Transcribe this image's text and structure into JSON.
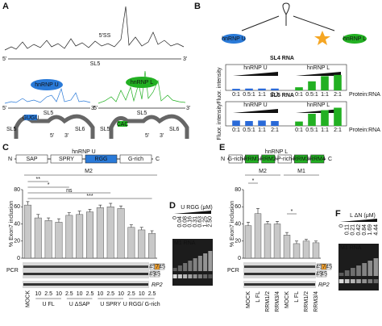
{
  "panels": {
    "a": {
      "label": "A",
      "ss": "5'SS",
      "stem": "SL5",
      "end5": "5'",
      "end3": "3'",
      "protein_u": "hnRNP U",
      "protein_l": "hnRNP L",
      "motif_u": "GUGU",
      "motif_l": "CAC",
      "stem2": "SL6"
    },
    "b": {
      "label": "B",
      "protein_u": "hnRNP U",
      "protein_l": "hnRNP L",
      "ylabel": "Fluor. intensity",
      "xlabel": "Protein:RNA",
      "categories": [
        "0:1",
        "0.5:1",
        "1:1",
        "2:1"
      ],
      "ylim": [
        0,
        1
      ],
      "charts": [
        {
          "type": "bar",
          "title": "SL4 RNA",
          "series": [
            {
              "name": "hnRNP U",
              "color": "#2a6ad8",
              "values": [
                0.06,
                0.07,
                0.07,
                0.07
              ]
            },
            {
              "name": "hnRNP L",
              "color": "#22b022",
              "values": [
                0.12,
                0.35,
                0.55,
                0.6
              ]
            }
          ]
        },
        {
          "type": "bar",
          "title": "SL5 RNA",
          "series": [
            {
              "name": "hnRNP U",
              "color": "#2a6ad8",
              "values": [
                0.22,
                0.2,
                0.22,
                0.2
              ]
            },
            {
              "name": "hnRNP L",
              "color": "#22b022",
              "values": [
                0.18,
                0.5,
                0.65,
                0.75
              ]
            }
          ]
        }
      ]
    },
    "c": {
      "label": "C",
      "construct": {
        "title": "hnRNP U",
        "n_term": "N",
        "c_term": "C",
        "domains": [
          {
            "name": "SAP",
            "color": "#ffffff"
          },
          {
            "name": "SPRY",
            "color": "#ffffff"
          },
          {
            "name": "RGG",
            "color": "#2a7ad8"
          },
          {
            "name": "G-rich",
            "color": "#ffffff"
          }
        ]
      },
      "chart": {
        "type": "bar",
        "minigene": "M2",
        "ylabel": "% Exon7 inclusion",
        "ylim": [
          0,
          80
        ],
        "yticks": [
          0,
          20,
          40,
          60,
          80
        ],
        "color": "#c8c8c8",
        "values": [
          62,
          47,
          44,
          42,
          50,
          51,
          54,
          59,
          60,
          58,
          36,
          33,
          29
        ],
        "errors": [
          4,
          4,
          3,
          4,
          3,
          4,
          3,
          3,
          4,
          3,
          3,
          3,
          3
        ],
        "doses": [
          null,
          10,
          2.5,
          10,
          2.5,
          10,
          2.5,
          10,
          2.5,
          10,
          2.5,
          10,
          2.5
        ],
        "groups": [
          "MOCK",
          "U FL",
          "U ΔSAP",
          "U SPRY",
          "U RGG/ G-rich"
        ],
        "significance": [
          "**",
          "*",
          "ns",
          "***"
        ]
      },
      "gel": {
        "method": "PCR",
        "inclusion": [
          "45",
          "7",
          "45"
        ],
        "skipping": [
          "45",
          "45"
        ],
        "control": "RP2"
      }
    },
    "d": {
      "label": "D",
      "title": "U RGG (μM)",
      "concentrations": [
        "0",
        "0.04",
        "0.08",
        "0.16",
        "0.31",
        "0.63",
        "1.25",
        "2.50"
      ],
      "probe": "M1 RNA"
    },
    "e": {
      "label": "E",
      "construct": {
        "title": "hnRNP L",
        "n_term": "N",
        "c_term": "C",
        "domains": [
          {
            "name": "G-rich",
            "color": "#ffffff"
          },
          {
            "name": "RRM1",
            "color": "#22b022"
          },
          {
            "name": "RRM2",
            "color": "#22b022"
          },
          {
            "name": "P-rich",
            "color": "#ffffff"
          },
          {
            "name": "RRM3",
            "color": "#22b022"
          },
          {
            "name": "RRM4",
            "color": "#22b022"
          }
        ]
      },
      "chart": {
        "type": "bar",
        "minigenes": [
          "M2",
          "M1"
        ],
        "ylabel": "% Exon7 inclusion",
        "ylim": [
          0,
          80
        ],
        "yticks": [
          0,
          20,
          40,
          60,
          80
        ],
        "color": "#c8c8c8",
        "categories": [
          "MOCK",
          "L FL",
          "RRM1/2",
          "RRM3/4",
          "MOCK",
          "L FL",
          "RRM1/2",
          "RRM3/4"
        ],
        "values": [
          38,
          52,
          40,
          40,
          27,
          17,
          20,
          18
        ],
        "errors": [
          4,
          6,
          3,
          3,
          3,
          3,
          2,
          2
        ],
        "significance": [
          "*",
          "*"
        ]
      },
      "gel": {
        "method": "PCR",
        "inclusion": [
          "45",
          "7",
          "45"
        ],
        "skipping": [
          "45",
          "45"
        ],
        "control": "RP2"
      }
    },
    "f": {
      "label": "F",
      "title": "L ΔN (μM)",
      "concentrations": [
        "0",
        "0.11",
        "0.21",
        "0.42",
        "0.84",
        "1.69",
        "4.44"
      ],
      "probe": "M1 RNA"
    }
  }
}
